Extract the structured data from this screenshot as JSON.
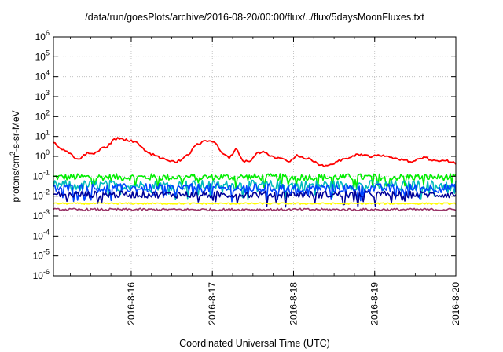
{
  "chart_data": {
    "type": "line",
    "title": "/data/run/goesPlots/archive/2016-08-20/00:00/flux/../flux/5daysMoonFluxes.txt",
    "xlabel": "Coordinated Universal Time (UTC)",
    "ylabel": {
      "prefix": "protons/cm",
      "sup": "2",
      "suffix": "-s-sr-MeV"
    },
    "y_scale": "log",
    "ylim": [
      1e-06,
      1000000.0
    ],
    "y_ticks": [
      {
        "value": 1e-06,
        "base": "10",
        "exp": "-6"
      },
      {
        "value": 1e-05,
        "base": "10",
        "exp": "-5"
      },
      {
        "value": 0.0001,
        "base": "10",
        "exp": "-4"
      },
      {
        "value": 0.001,
        "base": "10",
        "exp": "-3"
      },
      {
        "value": 0.01,
        "base": "10",
        "exp": "-2"
      },
      {
        "value": 0.1,
        "base": "10",
        "exp": "-1"
      },
      {
        "value": 1,
        "base": "10",
        "exp": "0"
      },
      {
        "value": 10,
        "base": "10",
        "exp": "1"
      },
      {
        "value": 100,
        "base": "10",
        "exp": "2"
      },
      {
        "value": 1000,
        "base": "10",
        "exp": "3"
      },
      {
        "value": 10000,
        "base": "10",
        "exp": "4"
      },
      {
        "value": 100000,
        "base": "10",
        "exp": "5"
      },
      {
        "value": 1000000,
        "base": "10",
        "exp": "6"
      }
    ],
    "xlim": [
      "2016-08-15T01:00",
      "2016-08-20T00:00"
    ],
    "x_ticks": [
      "2016-8-16",
      "2016-8-17",
      "2016-8-18",
      "2016-8-19",
      "2016-8-20"
    ],
    "grid": true,
    "series": [
      {
        "color": "#ff0000",
        "x": [
          "2016-08-15T01:00",
          "2016-08-15T03:00",
          "2016-08-15T05:00",
          "2016-08-15T07:00",
          "2016-08-15T09:00",
          "2016-08-15T11:00",
          "2016-08-15T13:00",
          "2016-08-15T15:00",
          "2016-08-15T17:00",
          "2016-08-15T19:00",
          "2016-08-15T21:00",
          "2016-08-15T23:00",
          "2016-08-16T01:00",
          "2016-08-16T03:00",
          "2016-08-16T05:00",
          "2016-08-16T07:00",
          "2016-08-16T09:00",
          "2016-08-16T11:00",
          "2016-08-16T13:00",
          "2016-08-16T15:00",
          "2016-08-16T17:00",
          "2016-08-16T19:00",
          "2016-08-16T21:00",
          "2016-08-16T23:00",
          "2016-08-17T01:00",
          "2016-08-17T03:00",
          "2016-08-17T05:00",
          "2016-08-17T07:00",
          "2016-08-17T09:00",
          "2016-08-17T11:00",
          "2016-08-17T13:00",
          "2016-08-17T15:00",
          "2016-08-17T17:00",
          "2016-08-17T19:00",
          "2016-08-17T21:00",
          "2016-08-17T23:00",
          "2016-08-18T01:00",
          "2016-08-18T03:00",
          "2016-08-18T05:00",
          "2016-08-18T07:00",
          "2016-08-18T09:00",
          "2016-08-18T11:00",
          "2016-08-18T13:00",
          "2016-08-18T15:00",
          "2016-08-18T17:00",
          "2016-08-18T19:00",
          "2016-08-18T21:00",
          "2016-08-18T23:00",
          "2016-08-19T01:00",
          "2016-08-19T03:00",
          "2016-08-19T05:00",
          "2016-08-19T07:00",
          "2016-08-19T09:00",
          "2016-08-19T11:00",
          "2016-08-19T13:00",
          "2016-08-19T15:00",
          "2016-08-19T17:00",
          "2016-08-19T19:00",
          "2016-08-19T21:00",
          "2016-08-19T23:00",
          "2016-08-20T00:00"
        ],
        "values": [
          5,
          2.5,
          1.8,
          0.9,
          0.75,
          1.6,
          1.3,
          2.5,
          3,
          7.5,
          8,
          6,
          5.5,
          3,
          1.5,
          1.1,
          0.8,
          0.6,
          0.5,
          0.7,
          1.2,
          3.5,
          5.5,
          6,
          4.5,
          1.4,
          0.8,
          2.5,
          0.6,
          0.55,
          1.4,
          1.8,
          1,
          0.8,
          0.75,
          0.55,
          1.2,
          0.8,
          0.75,
          0.45,
          0.3,
          0.4,
          0.55,
          0.75,
          0.9,
          1.3,
          1.2,
          0.9,
          1.2,
          1,
          0.9,
          0.7,
          0.65,
          0.5,
          0.75,
          0.9,
          0.6,
          0.55,
          0.6,
          0.5,
          0.4
        ]
      },
      {
        "color": "#00ee00",
        "x": [
          "2016-08-15T01:00",
          "2016-08-20T00:00"
        ],
        "values": [
          0.09,
          0.09
        ],
        "noise": 0.35
      },
      {
        "color": "#00bbbb",
        "x": [
          "2016-08-15T01:00",
          "2016-08-20T00:00"
        ],
        "values": [
          0.035,
          0.035
        ],
        "noise": 0.5
      },
      {
        "color": "#0044ff",
        "x": [
          "2016-08-15T01:00",
          "2016-08-20T00:00"
        ],
        "values": [
          0.025,
          0.025
        ],
        "noise": 0.45
      },
      {
        "color": "#000099",
        "x": [
          "2016-08-15T01:00",
          "2016-08-20T00:00"
        ],
        "values": [
          0.012,
          0.012
        ],
        "noise": 0.35
      },
      {
        "color": "#ffff00",
        "x": [
          "2016-08-15T01:00",
          "2016-08-20T00:00"
        ],
        "values": [
          0.0042,
          0.0042
        ],
        "noise": 0.08
      },
      {
        "color": "#993366",
        "x": [
          "2016-08-15T01:00",
          "2016-08-20T00:00"
        ],
        "values": [
          0.0021,
          0.0021
        ],
        "noise": 0.12
      }
    ]
  }
}
